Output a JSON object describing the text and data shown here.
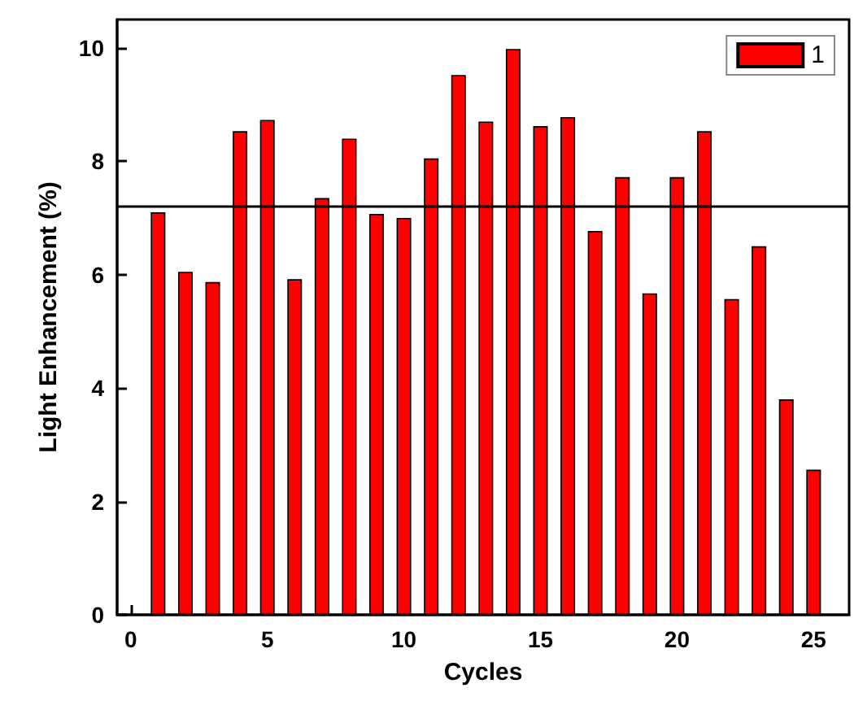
{
  "chart_data": {
    "type": "bar",
    "xlabel": "Cycles",
    "ylabel": "Light Enhancement (%)",
    "x": [
      1,
      2,
      3,
      4,
      5,
      6,
      7,
      8,
      9,
      10,
      11,
      12,
      13,
      14,
      15,
      16,
      17,
      18,
      19,
      20,
      21,
      22,
      23,
      24,
      25
    ],
    "series": [
      {
        "name": "1",
        "color": "#ff0000",
        "values": [
          7.1,
          6.05,
          5.87,
          8.53,
          8.73,
          5.92,
          7.35,
          8.4,
          7.07,
          7.0,
          8.05,
          9.52,
          8.7,
          9.98,
          8.62,
          8.78,
          6.77,
          7.72,
          5.67,
          7.72,
          8.53,
          5.57,
          6.5,
          3.8,
          2.56
        ]
      }
    ],
    "xlim": [
      -0.5,
      26.3
    ],
    "xticks": [
      0,
      5,
      10,
      15,
      20,
      25
    ],
    "ylim": [
      0,
      10.5
    ],
    "yticks": [
      0,
      2,
      4,
      6,
      8,
      10
    ],
    "ref_lines": [
      {
        "axis": "y",
        "value": 7.22,
        "color": "#000000"
      }
    ],
    "grid": false,
    "legend": "top right"
  }
}
